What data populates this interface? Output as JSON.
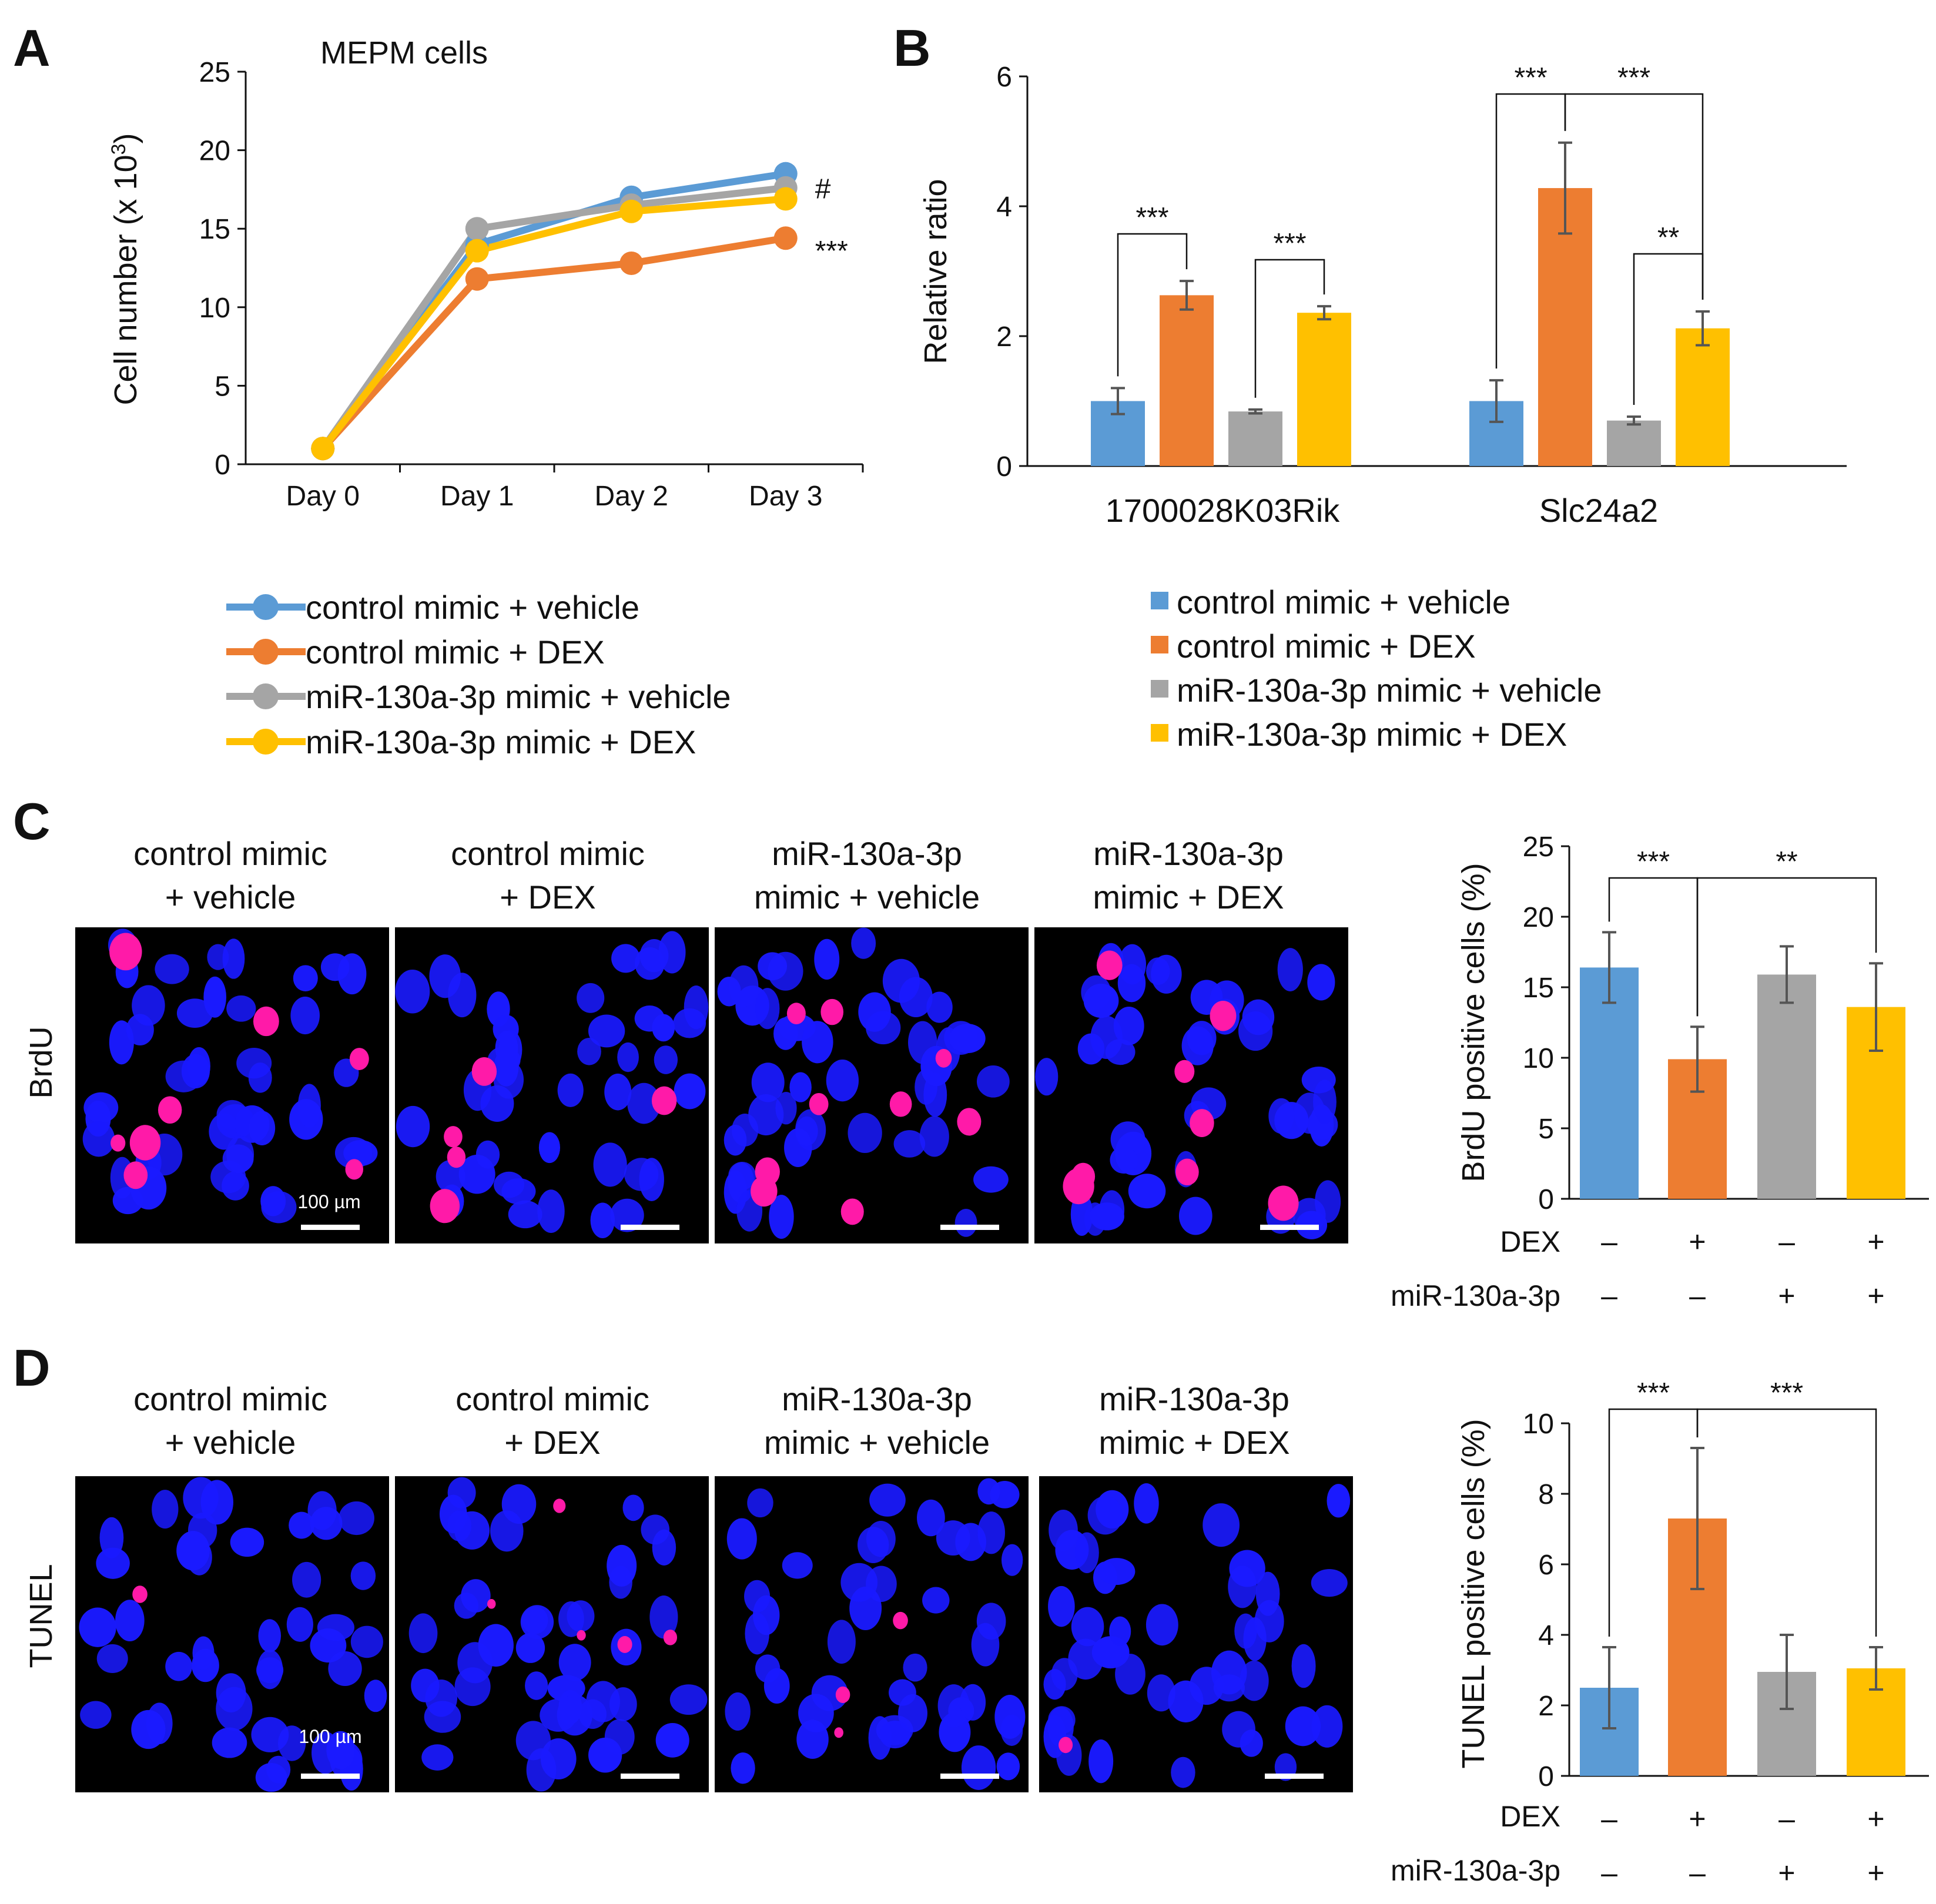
{
  "colors": {
    "control_vehicle": "#5b9bd5",
    "control_dex": "#ed7d31",
    "mir_vehicle": "#a5a5a5",
    "mir_dex": "#ffc000",
    "nucleus_blue": "#1a1aff",
    "positive_magenta": "#ff1aa8",
    "background": "#000000"
  },
  "legend": [
    "control mimic + vehicle",
    "control mimic + DEX",
    "miR-130a-3p mimic + vehicle",
    "miR-130a-3p mimic + DEX"
  ],
  "panel_letters": [
    "A",
    "B",
    "C",
    "D"
  ],
  "chart_data": [
    {
      "id": "A",
      "type": "line",
      "title": "MEPM cells",
      "xlabel": "",
      "ylabel": "Cell number (x 10",
      "ylabel_sup": "3",
      "ylabel_close": ")",
      "categories": [
        "Day 0",
        "Day 1",
        "Day 2",
        "Day 3"
      ],
      "ylim": [
        0,
        25
      ],
      "yticks": [
        0,
        5,
        10,
        15,
        20,
        25
      ],
      "series": [
        {
          "name": "control mimic + vehicle",
          "values": [
            1,
            14,
            17,
            18.5
          ]
        },
        {
          "name": "control mimic + DEX",
          "values": [
            1,
            11.8,
            12.8,
            14.4
          ]
        },
        {
          "name": "miR-130a-3p mimic + vehicle",
          "values": [
            1,
            15,
            16.5,
            17.6
          ]
        },
        {
          "name": "miR-130a-3p mimic + DEX",
          "values": [
            1,
            13.6,
            16.1,
            16.9
          ]
        }
      ],
      "annotations": [
        {
          "text": "#",
          "series": 2,
          "index": 3
        },
        {
          "text": "***",
          "series": 1,
          "index": 3
        }
      ]
    },
    {
      "id": "B",
      "type": "bar",
      "title": "",
      "xlabel": "",
      "ylabel": "Relative ratio",
      "categories": [
        "1700028K03Rik",
        "Slc24a2"
      ],
      "ylim": [
        0,
        6
      ],
      "yticks": [
        0,
        2,
        4,
        6
      ],
      "series": [
        {
          "name": "control mimic + vehicle",
          "values": [
            1.0,
            1.0
          ],
          "errors": [
            0.2,
            0.32
          ]
        },
        {
          "name": "control mimic + DEX",
          "values": [
            2.63,
            4.28
          ],
          "errors": [
            0.22,
            0.7
          ]
        },
        {
          "name": "miR-130a-3p mimic + vehicle",
          "values": [
            0.84,
            0.7
          ],
          "errors": [
            0.03,
            0.06
          ]
        },
        {
          "name": "miR-130a-3p mimic + DEX",
          "values": [
            2.36,
            2.12
          ],
          "errors": [
            0.1,
            0.26
          ]
        }
      ],
      "significance": [
        {
          "category": 0,
          "from": 0,
          "to": 1,
          "label": "***"
        },
        {
          "category": 0,
          "from": 2,
          "to": 3,
          "label": "***"
        },
        {
          "category": 1,
          "from": 0,
          "to": 1,
          "label": "***"
        },
        {
          "category": 1,
          "from": 1,
          "to": 3,
          "label": "***"
        },
        {
          "category": 1,
          "from": 2,
          "to": 3,
          "label": "**"
        }
      ]
    },
    {
      "id": "C",
      "type": "bar",
      "title": "",
      "xlabel": "",
      "ylabel": "BrdU positive cells (%)",
      "ylim": [
        0,
        25
      ],
      "yticks": [
        0,
        5,
        10,
        15,
        20,
        25
      ],
      "categories": [
        "control mimic + vehicle",
        "control mimic + DEX",
        "miR-130a-3p mimic + vehicle",
        "miR-130a-3p mimic + DEX"
      ],
      "values": [
        16.4,
        9.9,
        15.9,
        13.6
      ],
      "errors": [
        2.5,
        2.3,
        2.0,
        3.1
      ],
      "significance": [
        {
          "from": 0,
          "to": 1,
          "label": "***"
        },
        {
          "from": 1,
          "to": 3,
          "label": "**"
        }
      ],
      "row_labels": [
        "DEX",
        "miR-130a-3p"
      ],
      "dex_signs": [
        "–",
        "+",
        "–",
        "+"
      ],
      "mir_signs": [
        "–",
        "–",
        "+",
        "+"
      ]
    },
    {
      "id": "D",
      "type": "bar",
      "title": "",
      "xlabel": "",
      "ylabel": "TUNEL positive cells (%)",
      "ylim": [
        0,
        10
      ],
      "yticks": [
        0,
        2,
        4,
        6,
        8,
        10
      ],
      "categories": [
        "control mimic + vehicle",
        "control mimic + DEX",
        "miR-130a-3p mimic + vehicle",
        "miR-130a-3p mimic + DEX"
      ],
      "values": [
        2.5,
        7.3,
        2.95,
        3.05
      ],
      "errors": [
        1.15,
        2.0,
        1.05,
        0.6
      ],
      "significance": [
        {
          "from": 0,
          "to": 1,
          "label": "***"
        },
        {
          "from": 1,
          "to": 3,
          "label": "***"
        }
      ],
      "row_labels": [
        "DEX",
        "miR-130a-3p"
      ],
      "dex_signs": [
        "–",
        "+",
        "–",
        "+"
      ],
      "mir_signs": [
        "–",
        "–",
        "+",
        "+"
      ]
    }
  ],
  "micrographs": {
    "C": {
      "stain": "BrdU",
      "scale_label": "100 µm",
      "conditions": [
        {
          "line1": "control mimic",
          "line2": "+ vehicle"
        },
        {
          "line1": "control mimic",
          "line2": "+ DEX"
        },
        {
          "line1": "miR-130a-3p",
          "line2": "mimic + vehicle"
        },
        {
          "line1": "miR-130a-3p",
          "line2": "mimic + DEX"
        }
      ]
    },
    "D": {
      "stain": "TUNEL",
      "scale_label": "100 µm",
      "conditions": [
        {
          "line1": "control mimic",
          "line2": "+ vehicle"
        },
        {
          "line1": "control mimic",
          "line2": "+ DEX"
        },
        {
          "line1": "miR-130a-3p",
          "line2": "mimic + vehicle"
        },
        {
          "line1": "miR-130a-3p",
          "line2": "mimic + DEX"
        }
      ]
    }
  }
}
